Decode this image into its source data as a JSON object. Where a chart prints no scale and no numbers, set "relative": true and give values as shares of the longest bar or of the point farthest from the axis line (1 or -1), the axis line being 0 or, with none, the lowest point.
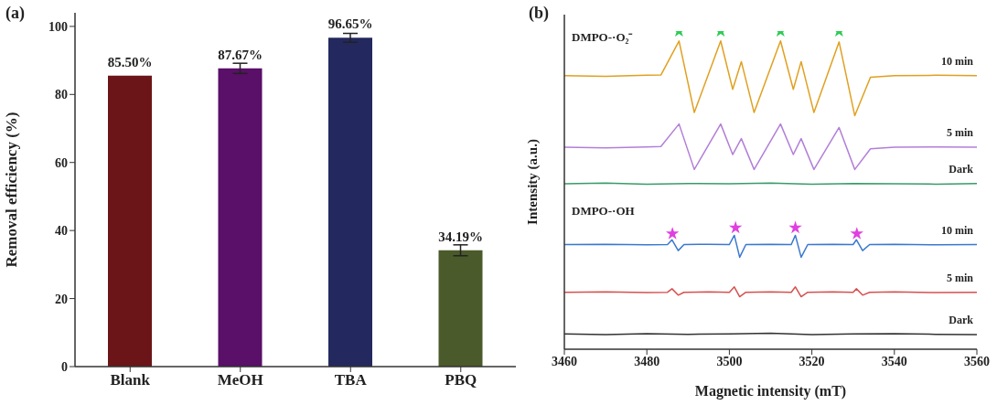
{
  "chart_data": [
    {
      "type": "bar",
      "title": "(a)",
      "ylabel": "Removal efficiency (%)",
      "categories": [
        "Blank",
        "MeOH",
        "TBA",
        "PBQ"
      ],
      "values": [
        85.5,
        87.67,
        96.65,
        34.19
      ],
      "colors": [
        "#6b1518",
        "#5a0f68",
        "#23295e",
        "#4a5a2a"
      ],
      "errors": [
        null,
        1.5,
        1.3,
        1.6
      ],
      "value_labels": [
        "85.50%",
        "87.67%",
        "96.65%",
        "34.19%"
      ],
      "ylim": [
        0,
        104
      ],
      "yticks": [
        0,
        20,
        40,
        60,
        80,
        100
      ]
    },
    {
      "type": "line",
      "title": "(b)",
      "xlabel": "Magnetic intensity (mT)",
      "ylabel": "Intensity (a.u.)",
      "relative": true,
      "tick_labels": "x",
      "xlim": [
        3460,
        3560
      ],
      "xticks": [
        3460,
        3480,
        3500,
        3520,
        3540,
        3560
      ],
      "annotations": [
        "DMPO-·O₂⁻",
        "DMPO-·OH"
      ],
      "series": [
        {
          "name": "10 min",
          "color": "#e0a020",
          "x": [
            3460,
            3470,
            3480,
            3483.4,
            3487.8,
            3491.5,
            3497.9,
            3500.8,
            3502.9,
            3506.0,
            3512.4,
            3515.5,
            3517.4,
            3520.5,
            3526.6,
            3530.4,
            3534.2,
            3540,
            3550,
            3560
          ],
          "values": [
            0.86,
            0.858,
            0.861,
            0.862,
            0.969,
            0.744,
            0.969,
            0.817,
            0.904,
            0.744,
            0.969,
            0.817,
            0.904,
            0.744,
            0.966,
            0.734,
            0.855,
            0.86,
            0.861,
            0.86
          ]
        },
        {
          "name": "5 min",
          "color": "#b27fd8",
          "x": [
            3460,
            3470,
            3480,
            3483.4,
            3487.8,
            3491.5,
            3497.9,
            3500.8,
            3502.9,
            3506.0,
            3512.4,
            3515.5,
            3517.4,
            3520.5,
            3526.6,
            3530.4,
            3534.2,
            3540,
            3550,
            3560
          ],
          "values": [
            0.635,
            0.633,
            0.636,
            0.637,
            0.708,
            0.565,
            0.708,
            0.612,
            0.662,
            0.565,
            0.708,
            0.612,
            0.662,
            0.565,
            0.697,
            0.565,
            0.63,
            0.635,
            0.636,
            0.635
          ]
        },
        {
          "name": "Dark",
          "color": "#3a9a6a",
          "x": [
            3460,
            3470,
            3480,
            3490,
            3500,
            3510,
            3520,
            3530,
            3540,
            3550,
            3560
          ],
          "values": [
            0.52,
            0.522,
            0.519,
            0.521,
            0.52,
            0.522,
            0.519,
            0.521,
            0.52,
            0.519,
            0.521
          ]
        },
        {
          "name": "10 min",
          "color": "#3a78d0",
          "x": [
            3460,
            3470,
            3480,
            3485,
            3486.1,
            3487.6,
            3489,
            3495,
            3500,
            3501.2,
            3502.5,
            3504,
            3510,
            3515,
            3516.0,
            3517.4,
            3519,
            3525,
            3530,
            3530.8,
            3532.3,
            3534,
            3540,
            3550,
            3560
          ],
          "values": [
            0.329,
            0.33,
            0.328,
            0.329,
            0.344,
            0.31,
            0.329,
            0.33,
            0.329,
            0.358,
            0.289,
            0.329,
            0.33,
            0.329,
            0.358,
            0.289,
            0.329,
            0.33,
            0.329,
            0.344,
            0.31,
            0.329,
            0.33,
            0.328,
            0.329
          ]
        },
        {
          "name": "5 min",
          "color": "#d65050",
          "x": [
            3460,
            3470,
            3480,
            3485,
            3486.1,
            3487.6,
            3489,
            3495,
            3500,
            3501.2,
            3502.5,
            3504,
            3510,
            3515,
            3516.0,
            3517.4,
            3519,
            3525,
            3530,
            3530.8,
            3532.3,
            3534,
            3540,
            3550,
            3560
          ],
          "values": [
            0.179,
            0.18,
            0.178,
            0.179,
            0.19,
            0.17,
            0.179,
            0.18,
            0.179,
            0.196,
            0.165,
            0.179,
            0.18,
            0.179,
            0.196,
            0.165,
            0.179,
            0.18,
            0.179,
            0.19,
            0.17,
            0.179,
            0.18,
            0.178,
            0.179
          ]
        },
        {
          "name": "Dark",
          "color": "#333333",
          "x": [
            3460,
            3470,
            3480,
            3490,
            3500,
            3510,
            3520,
            3530,
            3540,
            3550,
            3560
          ],
          "values": [
            0.048,
            0.046,
            0.049,
            0.047,
            0.048,
            0.05,
            0.046,
            0.048,
            0.049,
            0.047,
            0.046
          ]
        },
        {
          "type": "scatter",
          "marker": "star",
          "color": "#2ecc55",
          "x": [
            3487.8,
            3497.9,
            3512.4,
            3526.6
          ],
          "values": [
            1.0,
            1.0,
            1.0,
            1.0
          ]
        },
        {
          "type": "scatter",
          "marker": "star",
          "color": "#e040e0",
          "x": [
            3486.2,
            3501.5,
            3516.0,
            3530.9
          ],
          "values": [
            0.363,
            0.382,
            0.382,
            0.363
          ]
        }
      ]
    }
  ]
}
